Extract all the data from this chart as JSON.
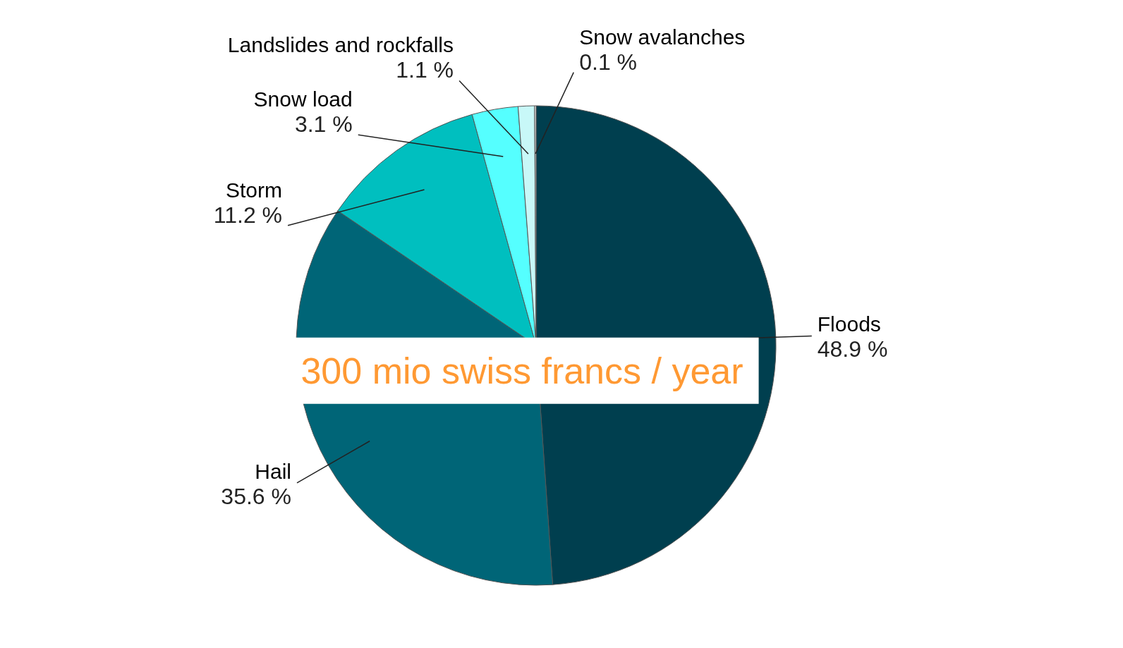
{
  "chart_data": {
    "type": "pie",
    "categories": [
      "Floods",
      "Hail",
      "Storm",
      "Snow load",
      "Landslides and rockfalls",
      "Snow avalanches"
    ],
    "values": [
      48.9,
      35.6,
      11.2,
      3.1,
      1.1,
      0.1
    ],
    "value_labels": [
      "48.9 %",
      "35.6 %",
      "11.2 %",
      "3.1 %",
      "1.1 %",
      "0.1 %"
    ],
    "colors": [
      "#003f4f",
      "#006577",
      "#00bfbf",
      "#55ffff",
      "#c8f8f8",
      "#ffffff"
    ],
    "annotations": [
      "300 mio swiss francs / year"
    ]
  }
}
